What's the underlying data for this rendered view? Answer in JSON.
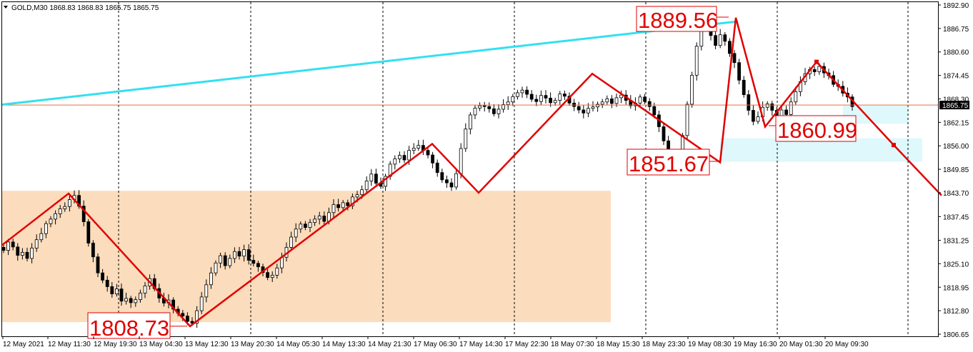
{
  "symbol_header": {
    "menu_icon": "triangle-down-icon",
    "text": "GOLD,M30  1868.83 1868.83 1865.75 1865.75"
  },
  "colors": {
    "background": "#ffffff",
    "candle": "#000000",
    "zigzag": "#e00000",
    "trendline": "#33e0f0",
    "price_line": "#e07040",
    "supply_zone": "#fbdcbc",
    "demand_zone": "#dff8fc",
    "current_price_tag": "#000000",
    "vertical_grid": "#000000"
  },
  "chart_data": {
    "type": "candlestick",
    "symbol": "GOLD",
    "timeframe": "M30",
    "ohlc_header": {
      "open": 1868.83,
      "high": 1868.83,
      "low": 1865.75,
      "close": 1865.75
    },
    "y_ticks": [
      1892.9,
      1886.75,
      1880.6,
      1874.45,
      1868.3,
      1862.15,
      1856.0,
      1849.85,
      1843.7,
      1837.45,
      1831.25,
      1825.1,
      1818.95,
      1812.8,
      1806.65
    ],
    "ylim": [
      1806.65,
      1892.9
    ],
    "x_tick_labels": [
      "12 May 2021",
      "12 May 11:30",
      "12 May 19:30",
      "13 May 04:30",
      "13 May 12:30",
      "13 May 20:30",
      "14 May 05:30",
      "14 May 13:30",
      "14 May 21:30",
      "17 May 06:30",
      "17 May 14:30",
      "17 May 22:30",
      "18 May 07:30",
      "18 May 15:30",
      "18 May 23:30",
      "19 May 08:30",
      "19 May 16:30",
      "20 May 01:30",
      "20 May 09:30"
    ],
    "current_price": 1865.75,
    "current_price_label": "1865.75",
    "grid": "vertical dashed at day separators",
    "closes": [
      1828.6,
      1830.8,
      1829.5,
      1827.3,
      1828.1,
      1826.5,
      1829.2,
      1831.4,
      1833.0,
      1835.6,
      1836.8,
      1838.2,
      1839.5,
      1840.1,
      1841.9,
      1843.0,
      1840.2,
      1836.1,
      1830.5,
      1826.9,
      1822.7,
      1820.8,
      1819.1,
      1817.2,
      1818.5,
      1815.3,
      1816.0,
      1814.9,
      1815.7,
      1817.4,
      1819.3,
      1821.2,
      1818.6,
      1816.1,
      1814.8,
      1815.6,
      1813.2,
      1812.1,
      1811.4,
      1810.0,
      1809.5,
      1812.8,
      1816.4,
      1819.6,
      1822.7,
      1825.3,
      1827.2,
      1824.6,
      1826.5,
      1828.3,
      1827.1,
      1828.8,
      1826.0,
      1825.2,
      1824.3,
      1822.8,
      1821.5,
      1822.1,
      1824.0,
      1826.8,
      1829.4,
      1832.1,
      1834.2,
      1835.5,
      1834.6,
      1835.9,
      1836.8,
      1837.6,
      1836.2,
      1838.5,
      1840.6,
      1839.8,
      1841.1,
      1840.3,
      1842.6,
      1843.2,
      1844.5,
      1846.8,
      1848.6,
      1846.2,
      1845.4,
      1848.0,
      1851.2,
      1852.6,
      1853.5,
      1852.3,
      1854.8,
      1855.4,
      1856.1,
      1854.8,
      1853.6,
      1851.5,
      1849.0,
      1847.1,
      1846.3,
      1845.2,
      1848.7,
      1855.3,
      1860.4,
      1864.1,
      1865.9,
      1866.5,
      1866.3,
      1865.7,
      1864.4,
      1865.6,
      1866.8,
      1867.5,
      1868.9,
      1869.9,
      1870.6,
      1869.5,
      1868.2,
      1867.6,
      1869.2,
      1868.5,
      1867.3,
      1867.9,
      1869.6,
      1869.0,
      1867.2,
      1866.3,
      1865.4,
      1864.6,
      1865.8,
      1866.2,
      1866.9,
      1867.5,
      1868.3,
      1867.1,
      1868.6,
      1869.3,
      1867.9,
      1866.5,
      1867.2,
      1868.8,
      1867.6,
      1866.3,
      1864.1,
      1861.0,
      1857.3,
      1853.2,
      1851.9,
      1852.6,
      1858.7,
      1866.9,
      1874.5,
      1882.1,
      1887.6,
      1889.4,
      1884.9,
      1882.3,
      1885.1,
      1883.4,
      1880.2,
      1877.8,
      1873.2,
      1869.4,
      1865.3,
      1862.4,
      1863.6,
      1866.1,
      1867.0,
      1865.3,
      1863.9,
      1865.4,
      1864.2,
      1867.5,
      1870.2,
      1872.8,
      1874.9,
      1876.0,
      1875.4,
      1876.8,
      1875.1,
      1874.4,
      1872.1,
      1871.6,
      1869.8,
      1868.8,
      1866.3
    ]
  },
  "annotations": {
    "callouts": [
      {
        "text": "1808.73",
        "price": 1808.73,
        "pos": "below-left"
      },
      {
        "text": "1889.56",
        "price": 1889.56,
        "pos": "above-left"
      },
      {
        "text": "1851.67",
        "price": 1851.67,
        "pos": "below-left"
      },
      {
        "text": "1860.99",
        "price": 1860.99,
        "pos": "below-right"
      }
    ]
  }
}
